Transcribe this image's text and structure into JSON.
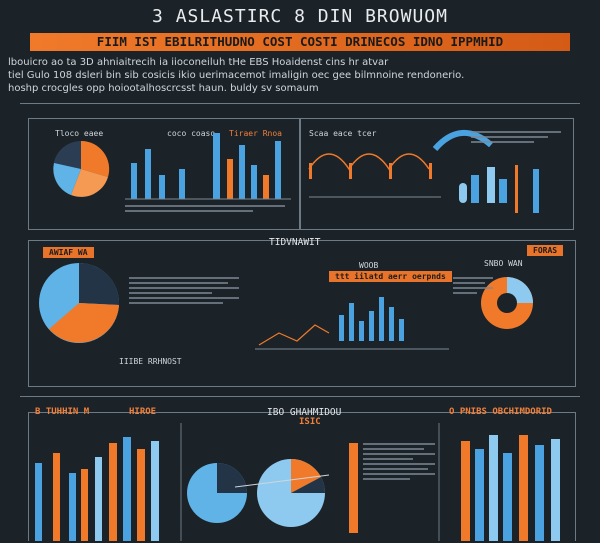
{
  "header": {
    "title": "3  ASLASTIRC  8 DIN BROWUOM",
    "banner": "FIIM IST EBILRITHUDNO COST COSTI DRINECOS IDNO IPPMHID",
    "intro_lines": [
      "lbouicro ao ta 3D ahniaitrecih ia iioconeiluh tHe EBS Hoaidenst cins hr atvar",
      "tiel Gulo 108 dsleri bin sib cosicis ikio uerimacemot imaligin oec gee bilmnoine rendonerio.",
      "hoshp crocgles opp hoiootalhoscrcsst haun. buldy sv somaum"
    ]
  },
  "panels": {
    "row1_pie_title": "Tloco eaee",
    "row1_bars_title": "coco coaso",
    "row1_bars2_title": "Tiraer Rnoa",
    "row1_wave_title": "Scaa eace tcer",
    "row2_left_tag": "AWIAF WA",
    "row2_mid_title": "TIDVNAWIT",
    "row2_mid_sub": "WOOB",
    "row2_mid_tag": "ttt iilatd aerr oerpnds",
    "row2_mid_label": "SNBO WAN",
    "row2_right_tag": "FORAS",
    "row2_bottom_label": "IIIBE RRHNOST",
    "row3_left_title": "B TUHHIN M",
    "row3_left_title2": "HIROE",
    "row3_mid_title": "IBO GHAHMIDOU",
    "row3_mid_sub": "ISIC",
    "row3_right_title": "O PNIBS OBCHIMDORID"
  },
  "colors": {
    "orange": "#f07a2a",
    "blue": "#4aa3e0",
    "light_blue": "#8ec9ef",
    "navy": "#243447",
    "bg": "#1b2228"
  }
}
